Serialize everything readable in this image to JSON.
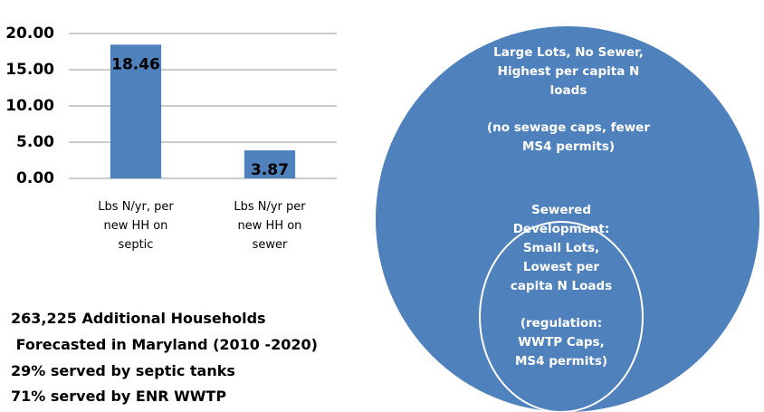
{
  "chart_data": {
    "type": "bar",
    "categories": [
      "Lbs N/yr, per new HH on septic",
      "Lbs N/yr per new HH on sewer"
    ],
    "values": [
      18.46,
      3.87
    ],
    "color": "#4f81bd",
    "ylim": [
      0,
      20
    ],
    "yticks": [
      {
        "value": 0,
        "label": "0.00"
      },
      {
        "value": 5,
        "label": "5.00"
      },
      {
        "value": 10,
        "label": "10.00"
      },
      {
        "value": 15,
        "label": "15.00"
      },
      {
        "value": 20,
        "label": "20.00"
      }
    ],
    "grid": true
  },
  "diagram": {
    "outer": {
      "label": "Large Lots, No Sewer, Highest per capita N loads",
      "note": "(no sewage caps, fewer MS4 permits)"
    },
    "inner": {
      "label": "Sewered Development: Small Lots, Lowest per capita N Loads",
      "note": "(regulation: WWTP Caps, MS4 permits)"
    }
  },
  "notes": [
    "263,225 Additional Households",
    " Forecasted in Maryland (2010 -2020)",
    "29% served by septic tanks",
    "71% served by ENR WWTP"
  ]
}
